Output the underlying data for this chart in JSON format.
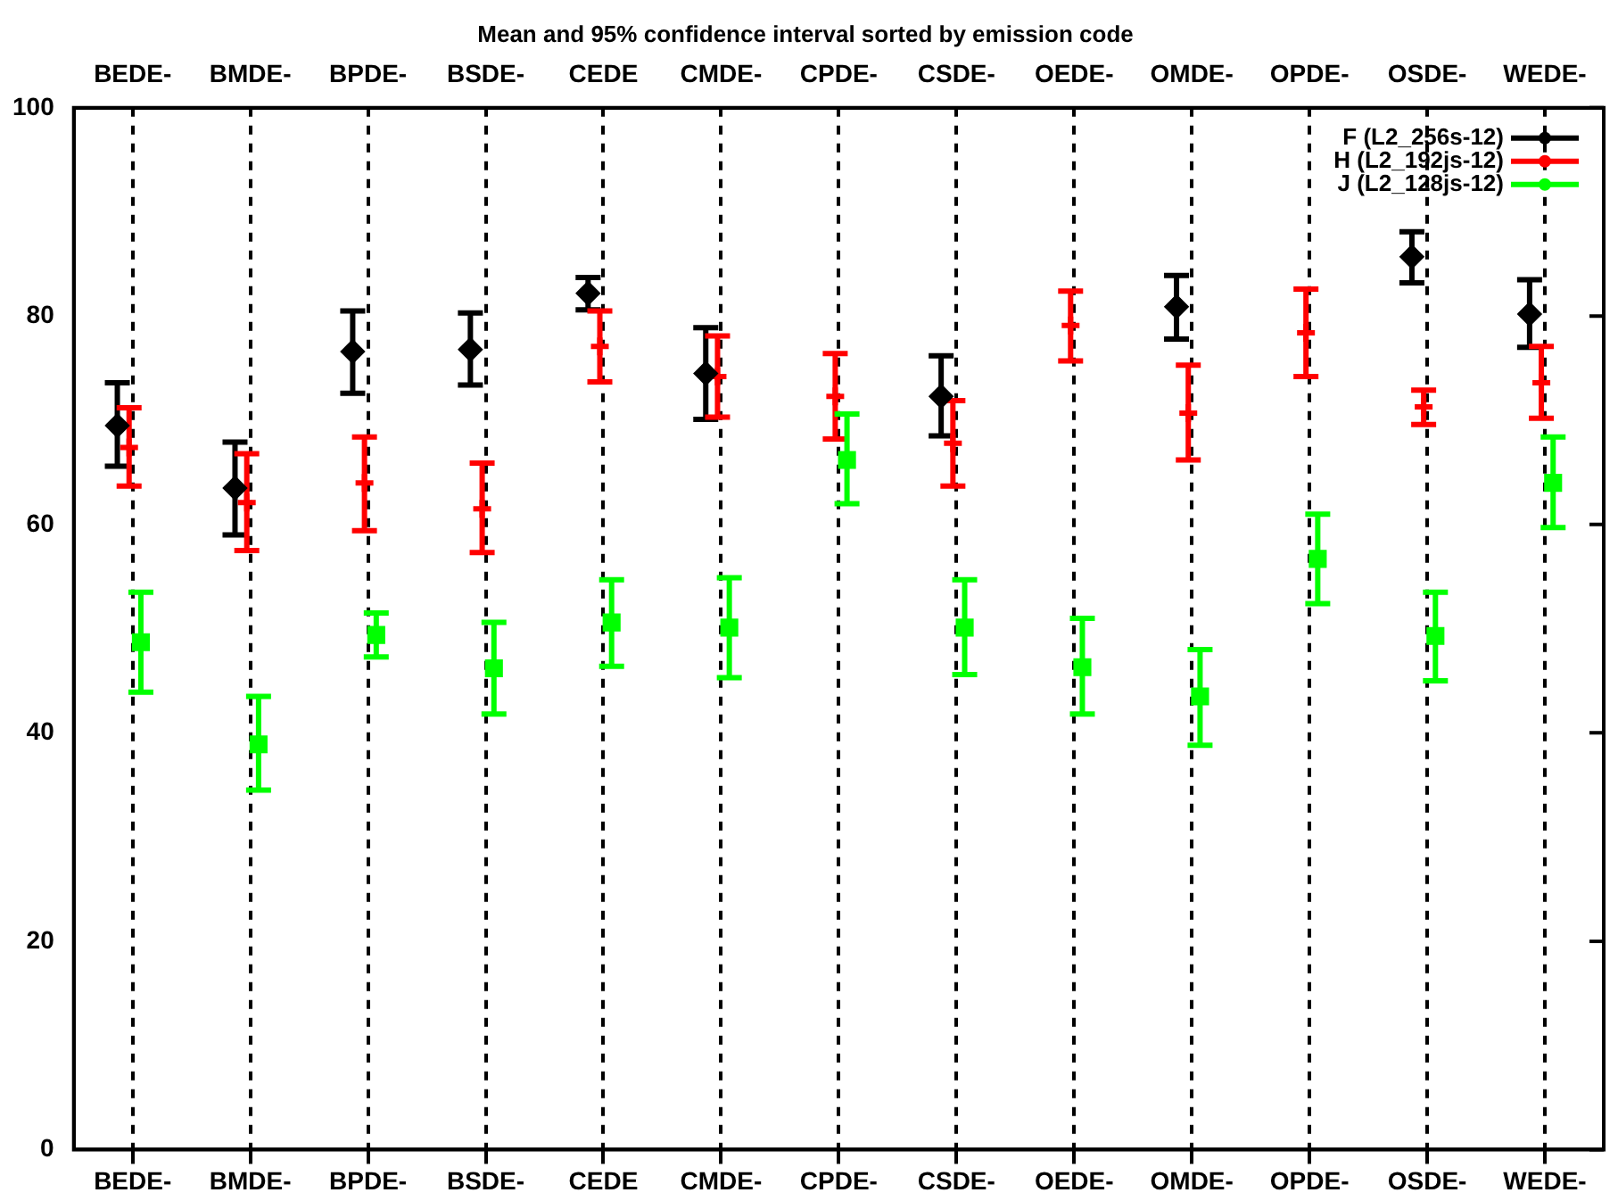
{
  "chart_data": {
    "type": "scatter",
    "title": "Mean and 95% confidence interval sorted by emission code",
    "categories": [
      "BEDE-",
      "BMDE-",
      "BPDE-",
      "BSDE-",
      "CEDE",
      "CMDE-",
      "CPDE-",
      "CSDE-",
      "OEDE-",
      "OMDE-",
      "OPDE-",
      "OSDE-",
      "WEDE-"
    ],
    "ylim": [
      0,
      100
    ],
    "yticks": [
      0,
      20,
      40,
      60,
      80,
      100
    ],
    "grid": "x",
    "legend": "top right",
    "series": [
      {
        "name": "F (L2_256s-12)",
        "color": "#000000",
        "marker": "diamond",
        "values": [
          69.5,
          63.5,
          76.6,
          76.8,
          82.2,
          74.5,
          null,
          72.3,
          null,
          80.9,
          null,
          85.7,
          80.2
        ],
        "errors": [
          [
            65.6,
            73.6
          ],
          [
            59.0,
            67.9
          ],
          [
            72.6,
            80.5
          ],
          [
            73.4,
            80.3
          ],
          [
            80.6,
            83.7
          ],
          [
            70.1,
            78.9
          ],
          null,
          [
            68.5,
            76.2
          ],
          null,
          [
            77.8,
            83.9
          ],
          null,
          [
            83.2,
            88.1
          ],
          [
            77.0,
            83.5
          ]
        ]
      },
      {
        "name": "H (L2_192js-12)",
        "color": "#ff0000",
        "marker": "cross",
        "values": [
          67.4,
          62.1,
          64.0,
          61.5,
          77.1,
          74.2,
          72.3,
          67.8,
          79.1,
          70.7,
          78.4,
          71.3,
          73.6
        ],
        "errors": [
          [
            63.7,
            71.2
          ],
          [
            57.5,
            66.8
          ],
          [
            59.4,
            68.4
          ],
          [
            57.3,
            65.9
          ],
          [
            73.7,
            80.5
          ],
          [
            70.3,
            78.1
          ],
          [
            68.2,
            76.4
          ],
          [
            63.7,
            71.9
          ],
          [
            75.7,
            82.4
          ],
          [
            66.2,
            75.3
          ],
          [
            74.2,
            82.6
          ],
          [
            69.6,
            72.9
          ],
          [
            70.2,
            77.1
          ]
        ]
      },
      {
        "name": "J (L2_128js-12)",
        "color": "#00ff00",
        "marker": "square",
        "values": [
          48.7,
          38.9,
          49.4,
          46.2,
          50.6,
          50.1,
          66.2,
          50.1,
          46.3,
          43.5,
          56.7,
          49.3,
          64.0
        ],
        "errors": [
          [
            43.9,
            53.5
          ],
          [
            34.5,
            43.5
          ],
          [
            47.3,
            51.5
          ],
          [
            41.8,
            50.6
          ],
          [
            46.4,
            54.7
          ],
          [
            45.3,
            54.9
          ],
          [
            62.0,
            70.6
          ],
          [
            45.6,
            54.7
          ],
          [
            41.8,
            51.0
          ],
          [
            38.8,
            48.0
          ],
          [
            52.4,
            61.0
          ],
          [
            45.0,
            53.5
          ],
          [
            59.7,
            68.4
          ]
        ]
      }
    ]
  }
}
